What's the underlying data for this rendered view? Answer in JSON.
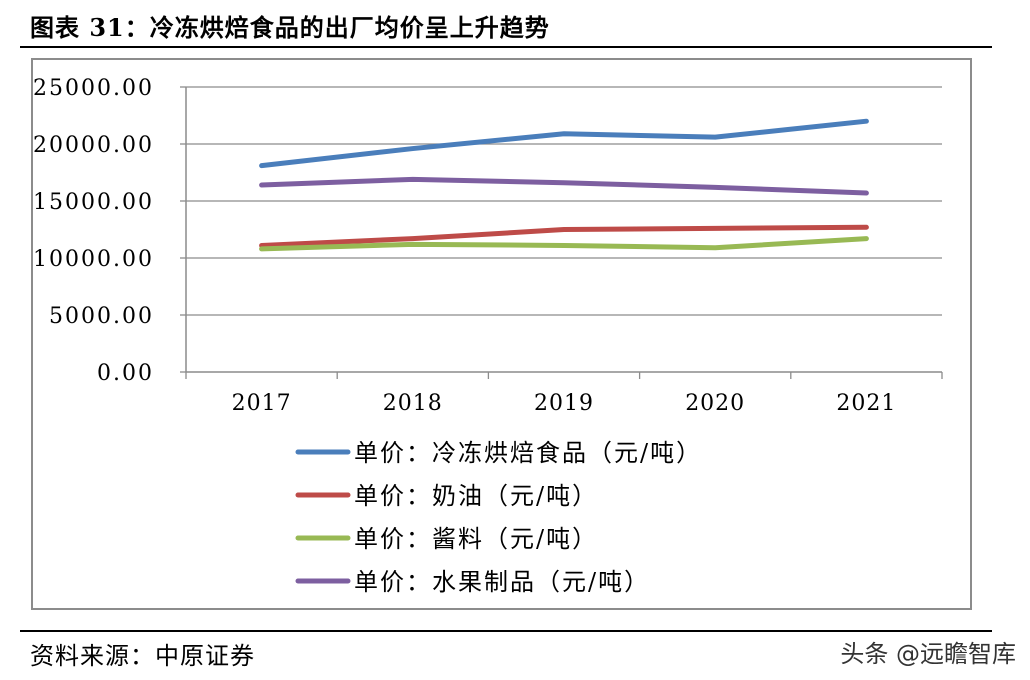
{
  "header": {
    "title": "图表 31：冷冻烘焙食品的出厂均价呈上升趋势"
  },
  "footer": {
    "source": "资料来源：中原证券",
    "watermark": "头条 @远瞻智库"
  },
  "chart_data": {
    "type": "line",
    "x": [
      "2017",
      "2018",
      "2019",
      "2020",
      "2021"
    ],
    "ylim": [
      0,
      25000
    ],
    "yticks": [
      "0.00",
      "5000.00",
      "10000.00",
      "15000.00",
      "20000.00",
      "25000.00"
    ],
    "grid": true,
    "legend_position": "bottom",
    "series": [
      {
        "name": "单价：冷冻烘焙食品（元/吨）",
        "color": "#4a7ebb",
        "values": [
          18100,
          19600,
          20900,
          20600,
          22000
        ]
      },
      {
        "name": "单价：奶油（元/吨）",
        "color": "#be4b48",
        "values": [
          11100,
          11700,
          12500,
          12600,
          12700
        ]
      },
      {
        "name": "单价：酱料（元/吨）",
        "color": "#98b954",
        "values": [
          10800,
          11200,
          11100,
          10900,
          11700
        ]
      },
      {
        "name": "单价：水果制品（元/吨）",
        "color": "#7d5fa0",
        "values": [
          16400,
          16900,
          16600,
          16200,
          15700
        ]
      }
    ]
  }
}
